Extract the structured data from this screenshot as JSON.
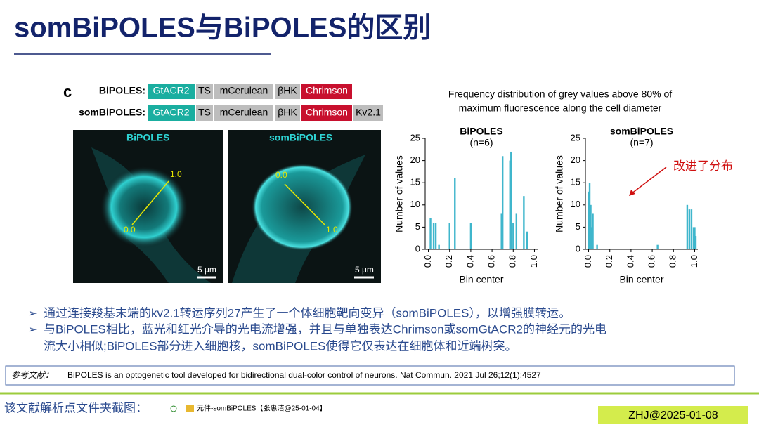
{
  "header": {
    "title": "somBiPOLES与BiPOLES的区别"
  },
  "figure": {
    "panel_letter": "c",
    "constructs": [
      {
        "name": "BiPOLES:",
        "parts": [
          "GtACR2",
          "TS",
          "mCerulean",
          "βHK",
          "Chrimson"
        ]
      },
      {
        "name": "somBiPOLES:",
        "parts": [
          "GtACR2",
          "TS",
          "mCerulean",
          "βHK",
          "Chrimson",
          "Kv2.1"
        ]
      }
    ],
    "images": [
      {
        "label": "BiPOLES",
        "start": "0.0",
        "end": "1.0",
        "scale": "5 μm"
      },
      {
        "label": "somBiPOLES",
        "start": "0.0",
        "end": "1.0",
        "scale": "5 μm"
      }
    ],
    "charts_title": [
      "Frequency distribution of grey values above 80% of",
      "maximum fluorescence along the cell diameter"
    ],
    "annotation": "改进了分布"
  },
  "chart_data": [
    {
      "type": "bar",
      "title": "BiPOLES",
      "subtitle": "(n=6)",
      "color": "#3fb6cc",
      "x": [
        0.02,
        0.05,
        0.07,
        0.1,
        0.2,
        0.25,
        0.4,
        0.69,
        0.7,
        0.77,
        0.78,
        0.8,
        0.83,
        0.9,
        0.93
      ],
      "values": [
        7,
        6,
        6,
        1,
        6,
        16,
        6,
        8,
        21,
        20,
        22,
        6,
        8,
        12,
        4
      ],
      "xlim": [
        -0.03,
        1.03
      ],
      "ylim": [
        0,
        25
      ],
      "xticks": [
        {
          "value": 0,
          "label": "0.0"
        },
        0.2,
        0.4,
        0.6,
        0.8,
        {
          "value": 1,
          "label": "1.0"
        }
      ],
      "yticks": [
        0,
        5,
        10,
        15,
        20,
        25
      ],
      "xlabel": "Bin center",
      "ylabel": "Number of values"
    },
    {
      "type": "bar",
      "title": "somBiPOLES",
      "subtitle": "(n=7)",
      "color": "#3fb6cc",
      "x": [
        0.0,
        0.01,
        0.02,
        0.03,
        0.04,
        0.08,
        0.65,
        0.93,
        0.95,
        0.97,
        0.99,
        1.0,
        1.01
      ],
      "values": [
        13,
        15,
        10,
        5,
        8,
        1,
        1,
        10,
        9,
        9,
        5,
        5,
        3
      ],
      "xlim": [
        -0.03,
        1.03
      ],
      "ylim": [
        0,
        25
      ],
      "xticks": [
        {
          "value": 0,
          "label": "0.0"
        },
        0.2,
        0.4,
        0.6,
        0.8,
        {
          "value": 1,
          "label": "1.0"
        }
      ],
      "yticks": [
        0,
        5,
        10,
        15,
        20,
        25
      ],
      "xlabel": "Bin center",
      "ylabel": "Number of values"
    }
  ],
  "bullets": [
    "通过连接羧基末端的kv2.1转运序列27产生了一个体细胞靶向变异（somBiPOLES），以增强膜转运。",
    "与BiPOLES相比，蓝光和红光介导的光电流增强，并且与单独表达Chrimson或somGtACR2的神经元的光电",
    "流大小相似;BiPOLES部分进入细胞核，somBiPOLES使得它仅表达在细胞体和近端树突。"
  ],
  "reference": {
    "label": "参考文献：",
    "text": "BiPOLES is an optogenetic tool developed for bidirectional dual-color control of neurons. Nat Commun. 2021 Jul 26;12(1):4527"
  },
  "footer": {
    "caption": "该文献解析点文件夹截图：",
    "path": "元件-somBiPOLES【张惠洁@25-01-04】",
    "stamp": "ZHJ@2025-01-08"
  }
}
